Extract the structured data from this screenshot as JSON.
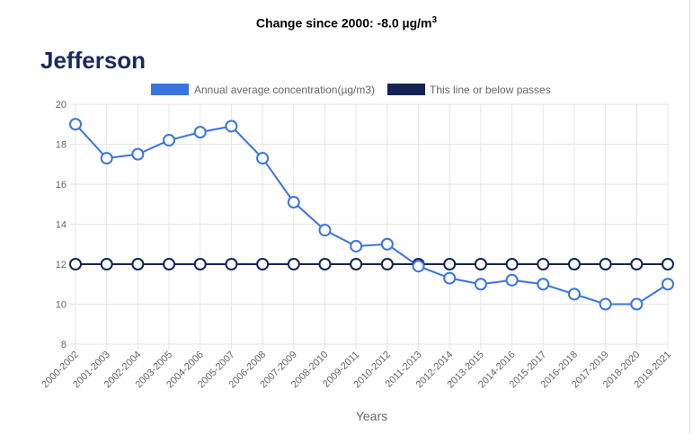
{
  "header": {
    "change_prefix": "Change since 2000: -8.0 µg/m",
    "change_sup": "3",
    "county": "Jefferson"
  },
  "colors": {
    "concentration": "#3a74e0",
    "threshold": "#152454",
    "grid": "#e6e6e6"
  },
  "chart_data": {
    "type": "line",
    "categories": [
      "2000-2002",
      "2001-2003",
      "2002-2004",
      "2003-2005",
      "2004-2006",
      "2005-2007",
      "2006-2008",
      "2007-2009",
      "2008-2010",
      "2009-2011",
      "2010-2012",
      "2011-2013",
      "2012-2014",
      "2013-2015",
      "2014-2016",
      "2015-2017",
      "2016-2018",
      "2017-2019",
      "2018-2020",
      "2019-2021"
    ],
    "series": [
      {
        "name": "Annual average concentration(µg/m3)",
        "values": [
          19.0,
          17.3,
          17.5,
          18.2,
          18.6,
          18.9,
          17.3,
          15.1,
          13.7,
          12.9,
          13.0,
          11.9,
          11.3,
          11.0,
          11.2,
          11.0,
          10.5,
          10.0,
          10.0,
          11.0
        ]
      },
      {
        "name": "This line or below passes",
        "values": [
          12,
          12,
          12,
          12,
          12,
          12,
          12,
          12,
          12,
          12,
          12,
          12,
          12,
          12,
          12,
          12,
          12,
          12,
          12,
          12
        ]
      }
    ],
    "xlabel": "Years",
    "ylabel": "",
    "ylim": [
      8,
      20
    ],
    "yticks": [
      8,
      10,
      12,
      14,
      16,
      18,
      20
    ],
    "grid": true,
    "legend_position": "top"
  }
}
